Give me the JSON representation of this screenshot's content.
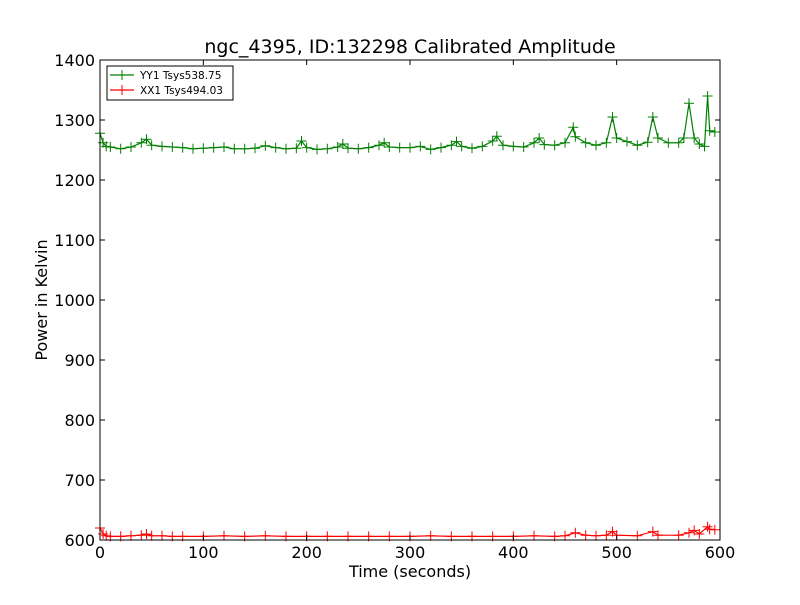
{
  "chart_data": {
    "type": "line",
    "title": "ngc_4395, ID:132298 Calibrated Amplitude",
    "xlabel": "Time (seconds)",
    "ylabel": "Power in Kelvin",
    "xlim": [
      0,
      600
    ],
    "ylim": [
      600,
      1400
    ],
    "xticks": [
      "0",
      "100",
      "200",
      "300",
      "400",
      "500",
      "600"
    ],
    "yticks": [
      "600",
      "700",
      "800",
      "900",
      "1000",
      "1100",
      "1200",
      "1300",
      "1400"
    ],
    "grid": false,
    "legend_position": "top-left",
    "marker": "+",
    "series": [
      {
        "name": "YY1 Tsys538.75",
        "color": "#008000",
        "x": [
          0,
          3,
          6,
          10,
          20,
          30,
          40,
          45,
          50,
          60,
          70,
          80,
          90,
          100,
          110,
          120,
          130,
          140,
          150,
          160,
          170,
          180,
          190,
          195,
          200,
          210,
          220,
          230,
          235,
          240,
          250,
          260,
          270,
          275,
          280,
          290,
          300,
          310,
          320,
          330,
          340,
          345,
          350,
          360,
          370,
          380,
          384,
          390,
          400,
          410,
          420,
          425,
          430,
          440,
          450,
          458,
          460,
          470,
          480,
          490,
          496,
          500,
          510,
          520,
          530,
          535,
          540,
          550,
          560,
          565,
          570,
          575,
          580,
          585,
          588,
          590,
          595
        ],
        "y": [
          1278,
          1262,
          1256,
          1255,
          1252,
          1255,
          1262,
          1268,
          1258,
          1256,
          1255,
          1254,
          1252,
          1253,
          1254,
          1255,
          1252,
          1252,
          1253,
          1257,
          1254,
          1252,
          1253,
          1265,
          1254,
          1251,
          1252,
          1255,
          1260,
          1253,
          1252,
          1254,
          1258,
          1262,
          1255,
          1254,
          1254,
          1256,
          1251,
          1254,
          1258,
          1264,
          1256,
          1253,
          1256,
          1265,
          1273,
          1258,
          1256,
          1255,
          1262,
          1270,
          1259,
          1258,
          1262,
          1288,
          1272,
          1262,
          1258,
          1262,
          1305,
          1270,
          1264,
          1258,
          1263,
          1305,
          1270,
          1262,
          1262,
          1270,
          1328,
          1270,
          1260,
          1256,
          1340,
          1282,
          1280
        ]
      },
      {
        "name": "XX1 Tsys494.03",
        "color": "#ff0000",
        "x": [
          0,
          3,
          6,
          10,
          20,
          30,
          40,
          45,
          50,
          60,
          70,
          80,
          100,
          120,
          140,
          160,
          180,
          200,
          220,
          240,
          260,
          280,
          300,
          320,
          340,
          360,
          380,
          400,
          420,
          440,
          450,
          460,
          470,
          480,
          490,
          496,
          500,
          520,
          535,
          540,
          560,
          570,
          575,
          580,
          588,
          590,
          595
        ],
        "y": [
          620,
          610,
          607,
          606,
          606,
          607,
          608,
          610,
          607,
          607,
          606,
          606,
          606,
          607,
          606,
          607,
          606,
          606,
          606,
          606,
          606,
          606,
          606,
          607,
          606,
          606,
          606,
          606,
          607,
          606,
          607,
          612,
          608,
          607,
          608,
          614,
          608,
          607,
          614,
          608,
          608,
          612,
          616,
          610,
          622,
          618,
          617
        ]
      }
    ]
  }
}
